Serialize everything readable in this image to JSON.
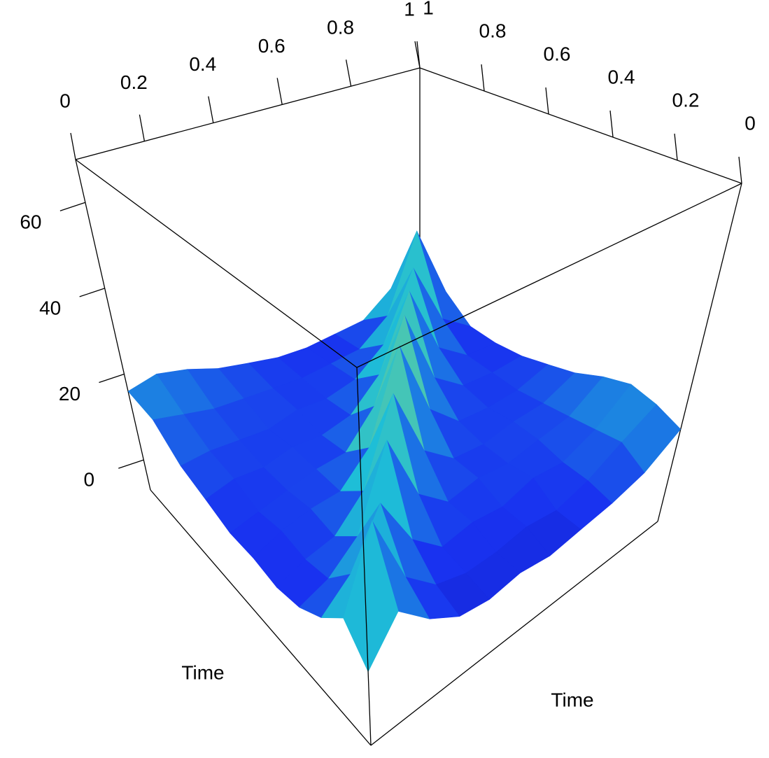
{
  "chart_data": {
    "type": "surface",
    "x": [
      0,
      0.1,
      0.2,
      0.3,
      0.4,
      0.5,
      0.6,
      0.7,
      0.8,
      0.9,
      1
    ],
    "y": [
      0,
      0.1,
      0.2,
      0.3,
      0.4,
      0.5,
      0.6,
      0.7,
      0.8,
      0.9,
      1
    ],
    "z": [
      [
        8,
        16,
        10,
        6,
        5,
        6,
        5,
        6,
        7,
        9,
        14
      ],
      [
        14,
        30,
        14,
        8,
        6,
        6,
        7,
        6,
        8,
        12,
        16
      ],
      [
        9,
        14,
        25,
        13,
        7,
        8,
        7,
        9,
        8,
        11,
        17
      ],
      [
        6,
        8,
        13,
        30,
        14,
        8,
        9,
        8,
        9,
        10,
        15
      ],
      [
        5,
        7,
        8,
        14,
        32,
        15,
        9,
        8,
        9,
        9,
        12
      ],
      [
        6,
        8,
        9,
        9,
        15,
        35,
        16,
        9,
        8,
        8,
        10
      ],
      [
        6,
        7,
        8,
        9,
        9,
        16,
        34,
        15,
        9,
        8,
        8
      ],
      [
        8,
        9,
        8,
        9,
        8,
        9,
        15,
        32,
        14,
        8,
        7
      ],
      [
        10,
        10,
        9,
        8,
        9,
        8,
        9,
        14,
        30,
        13,
        7
      ],
      [
        15,
        13,
        11,
        10,
        9,
        8,
        8,
        8,
        13,
        32,
        12
      ],
      [
        16,
        17,
        15,
        12,
        10,
        8,
        7,
        7,
        7,
        12,
        12
      ]
    ],
    "xlim": [
      0,
      1
    ],
    "ylim": [
      0,
      1
    ],
    "zlim": [
      -7,
      70
    ],
    "xticks": [
      0,
      0.2,
      0.4,
      0.6,
      0.8,
      1
    ],
    "yticks": [
      0,
      0.2,
      0.4,
      0.6,
      0.8,
      1
    ],
    "zticks": [
      0,
      20,
      40,
      60
    ],
    "xlabel": "Time",
    "ylabel": "Time"
  }
}
